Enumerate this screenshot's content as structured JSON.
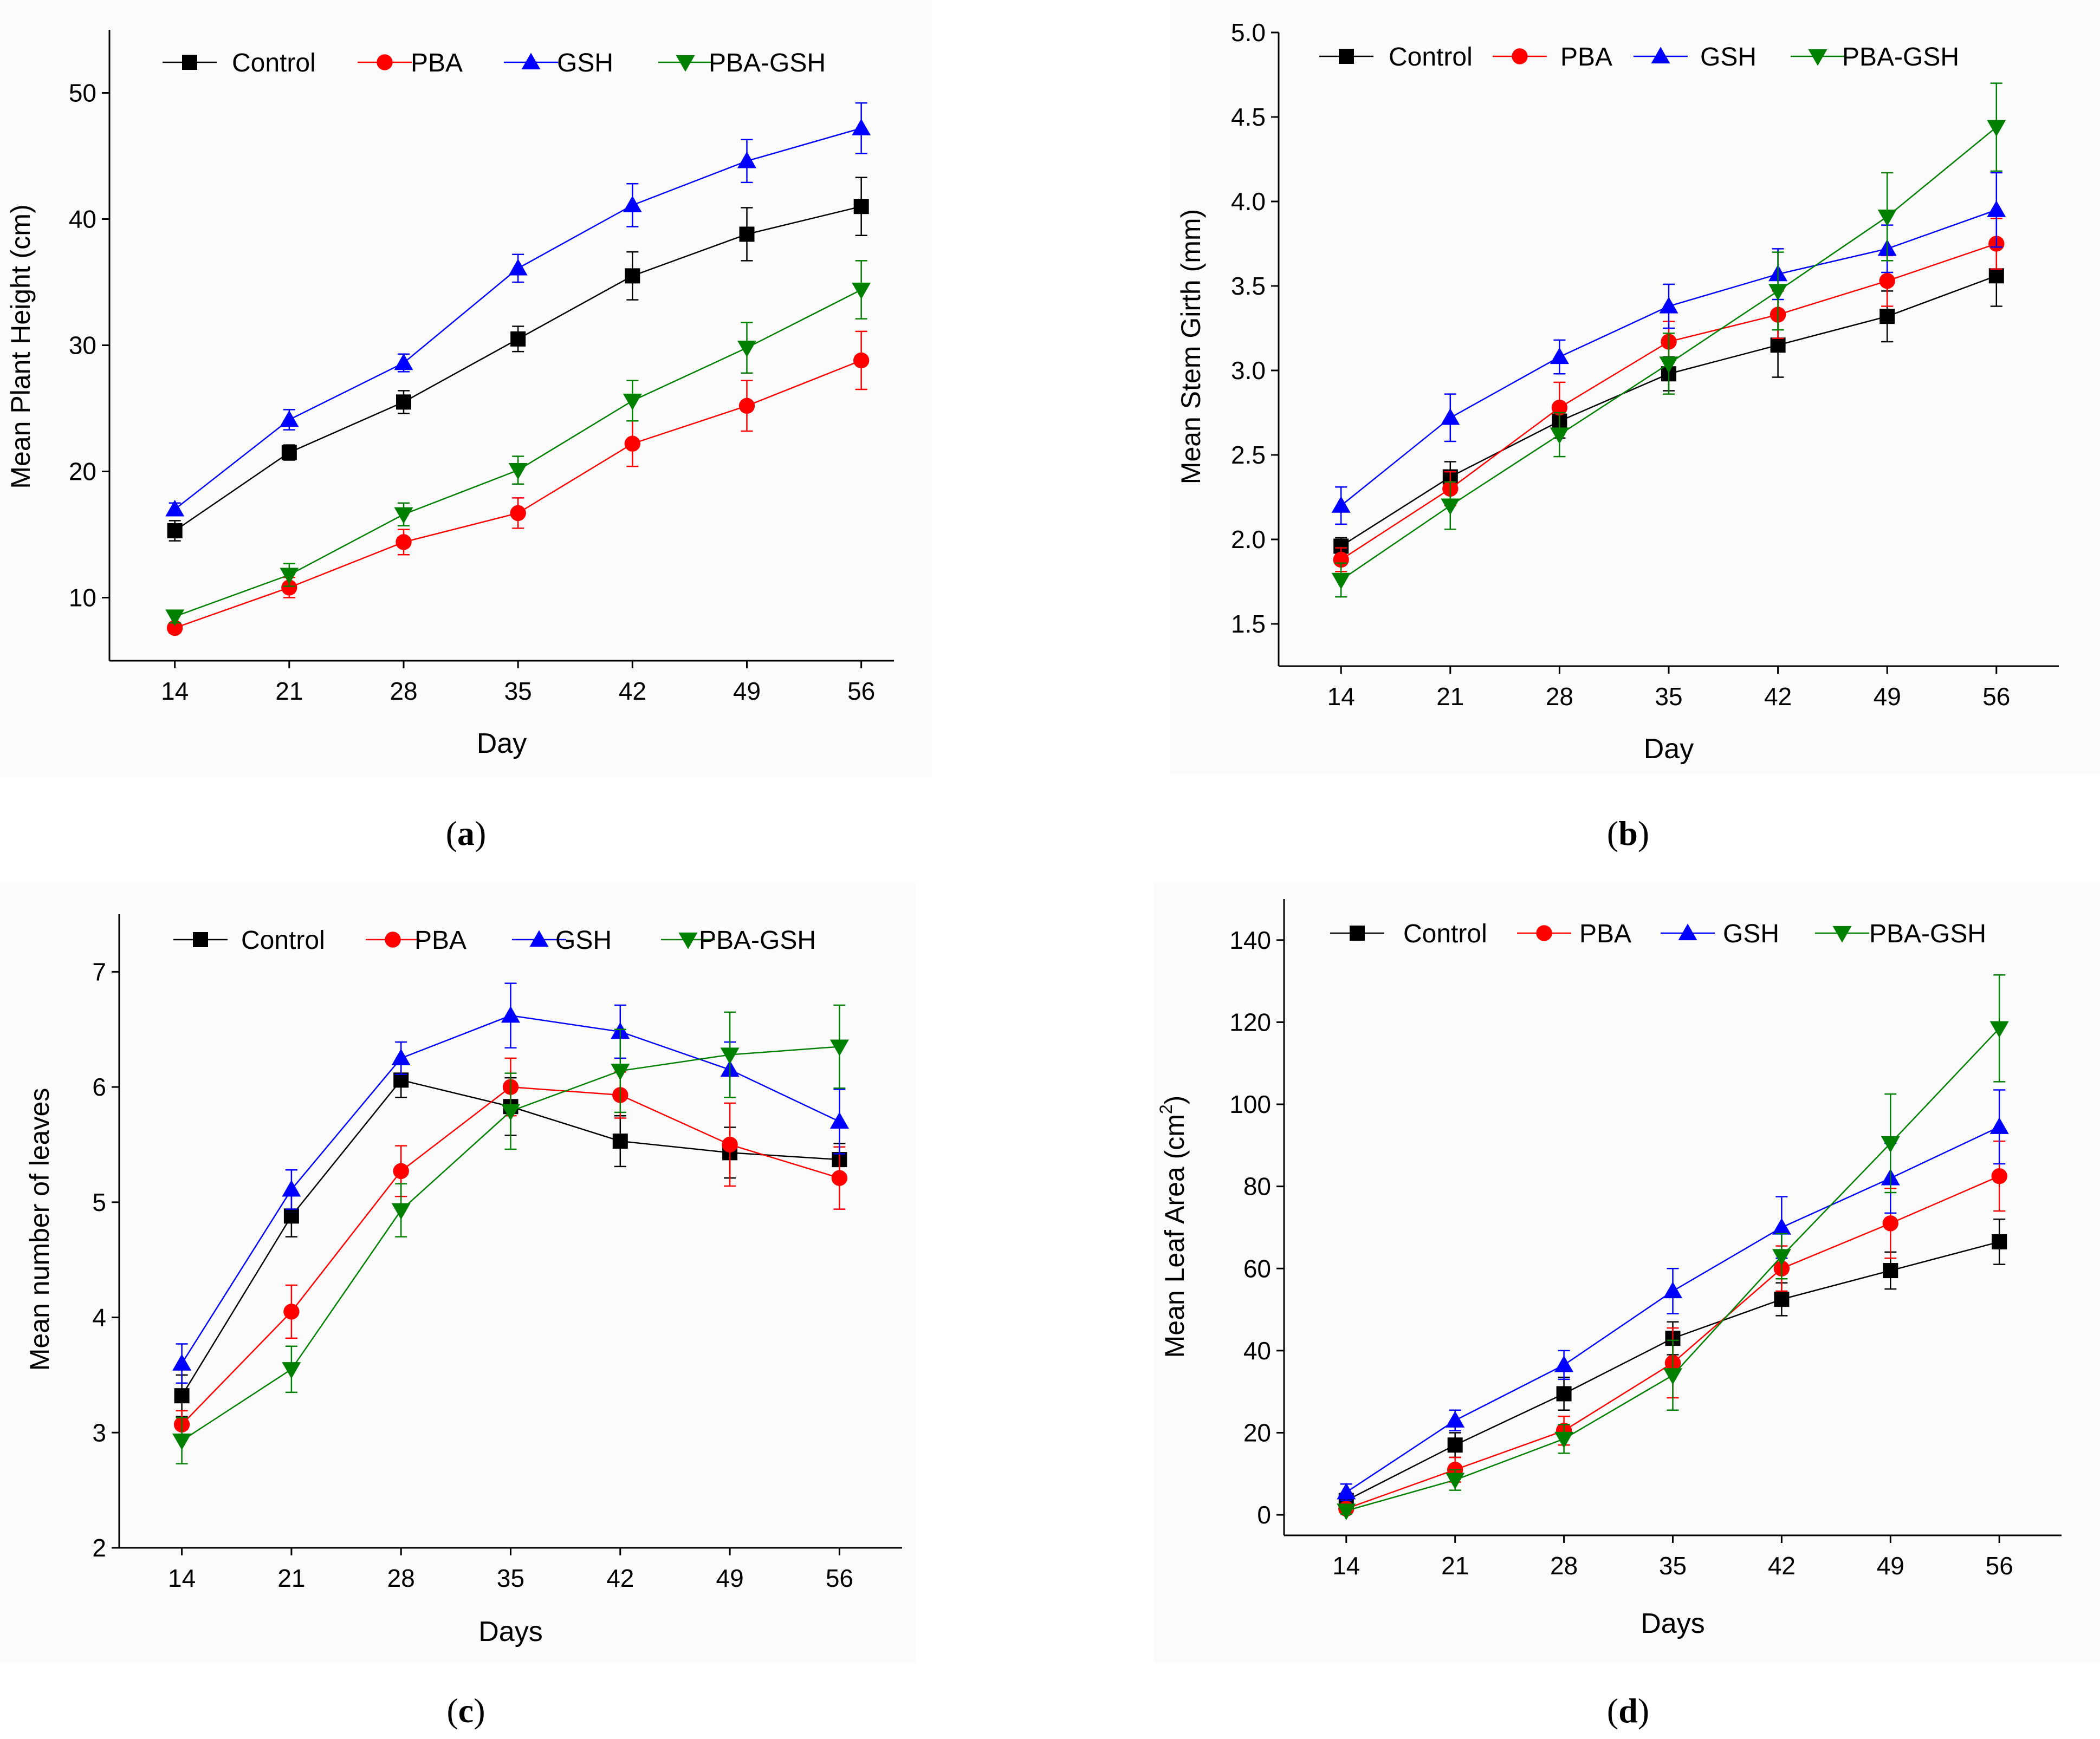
{
  "colors": {
    "Control": "#000000",
    "PBA": "#ff0000",
    "GSH": "#0000ff",
    "PBA-GSH": "#008000"
  },
  "chart_data": [
    {
      "type": "line",
      "panel": "(a)",
      "panel_letter": "a",
      "xlabel": "Day",
      "ylabel": "Mean Plant Height (cm)",
      "ylabel_sup": "",
      "ylabel_suffix": "",
      "x": [
        14,
        21,
        28,
        35,
        42,
        49,
        56
      ],
      "xlim": [
        10,
        58
      ],
      "ylim": [
        5,
        55
      ],
      "yticks": [
        10,
        20,
        30,
        40,
        50
      ],
      "ytick_labels": [
        "10",
        "20",
        "30",
        "40",
        "50"
      ],
      "series": [
        {
          "name": "Control",
          "marker": "square",
          "values": [
            15.3,
            21.5,
            25.5,
            30.5,
            35.5,
            38.8,
            41.0
          ],
          "errors": [
            0.8,
            0.6,
            0.9,
            1.0,
            1.9,
            2.1,
            2.3
          ]
        },
        {
          "name": "PBA",
          "marker": "circle",
          "values": [
            7.6,
            10.8,
            14.4,
            16.7,
            22.2,
            25.2,
            28.8
          ],
          "errors": [
            0.4,
            0.8,
            1.0,
            1.2,
            1.8,
            2.0,
            2.3
          ]
        },
        {
          "name": "GSH",
          "marker": "triangle-up",
          "values": [
            17.0,
            24.1,
            28.6,
            36.1,
            41.1,
            44.6,
            47.2
          ],
          "errors": [
            0.5,
            0.8,
            0.7,
            1.1,
            1.7,
            1.7,
            2.0
          ]
        },
        {
          "name": "PBA-GSH",
          "marker": "triangle-down",
          "values": [
            8.5,
            11.8,
            16.6,
            20.1,
            25.6,
            29.8,
            34.4
          ],
          "errors": [
            0.5,
            0.9,
            0.9,
            1.1,
            1.6,
            2.0,
            2.3
          ]
        }
      ]
    },
    {
      "type": "line",
      "panel": "(b)",
      "panel_letter": "b",
      "xlabel": "Day",
      "ylabel": "Mean Stem Girth (mm)",
      "ylabel_sup": "",
      "ylabel_suffix": "",
      "x": [
        14,
        21,
        28,
        35,
        42,
        49,
        56
      ],
      "xlim": [
        10,
        60
      ],
      "ylim": [
        1.25,
        5.0
      ],
      "yticks": [
        1.5,
        2.0,
        2.5,
        3.0,
        3.5,
        4.0,
        4.5,
        5.0
      ],
      "ytick_labels": [
        "1.5",
        "2.0",
        "2.5",
        "3.0",
        "3.5",
        "4.0",
        "4.5",
        "5.0"
      ],
      "series": [
        {
          "name": "Control",
          "marker": "square",
          "values": [
            1.96,
            2.37,
            2.7,
            2.98,
            3.15,
            3.32,
            3.56
          ],
          "errors": [
            0.05,
            0.09,
            0.1,
            0.1,
            0.19,
            0.15,
            0.18
          ]
        },
        {
          "name": "PBA",
          "marker": "circle",
          "values": [
            1.88,
            2.3,
            2.78,
            3.17,
            3.33,
            3.53,
            3.75
          ],
          "errors": [
            0.07,
            0.1,
            0.15,
            0.12,
            0.14,
            0.15,
            0.15
          ]
        },
        {
          "name": "GSH",
          "marker": "triangle-up",
          "values": [
            2.2,
            2.72,
            3.08,
            3.38,
            3.57,
            3.72,
            3.95
          ],
          "errors": [
            0.11,
            0.14,
            0.1,
            0.13,
            0.15,
            0.14,
            0.22
          ]
        },
        {
          "name": "PBA-GSH",
          "marker": "triangle-down",
          "values": [
            1.76,
            2.2,
            2.62,
            3.04,
            3.47,
            3.91,
            4.44
          ],
          "errors": [
            0.1,
            0.14,
            0.13,
            0.18,
            0.23,
            0.26,
            0.26
          ]
        }
      ]
    },
    {
      "type": "line",
      "panel": "(c)",
      "panel_letter": "c",
      "xlabel": "Days",
      "ylabel": "Mean number of leaves",
      "ylabel_sup": "",
      "ylabel_suffix": "",
      "x": [
        14,
        21,
        28,
        35,
        42,
        49,
        56
      ],
      "xlim": [
        10,
        60
      ],
      "ylim": [
        2,
        7.5
      ],
      "yticks": [
        2,
        3,
        4,
        5,
        6,
        7
      ],
      "ytick_labels": [
        "2",
        "3",
        "4",
        "5",
        "6",
        "7"
      ],
      "series": [
        {
          "name": "Control",
          "marker": "square",
          "values": [
            3.32,
            4.88,
            6.06,
            5.83,
            5.53,
            5.43,
            5.37
          ],
          "errors": [
            0.18,
            0.18,
            0.15,
            0.25,
            0.22,
            0.22,
            0.14
          ]
        },
        {
          "name": "PBA",
          "marker": "circle",
          "values": [
            3.07,
            4.05,
            5.27,
            6.0,
            5.93,
            5.5,
            5.21
          ],
          "errors": [
            0.12,
            0.23,
            0.22,
            0.25,
            0.2,
            0.36,
            0.27
          ]
        },
        {
          "name": "GSH",
          "marker": "triangle-up",
          "values": [
            3.6,
            5.11,
            6.25,
            6.62,
            6.48,
            6.15,
            5.7
          ],
          "errors": [
            0.17,
            0.17,
            0.14,
            0.28,
            0.23,
            0.24,
            0.28
          ]
        },
        {
          "name": "PBA-GSH",
          "marker": "triangle-down",
          "values": [
            2.93,
            3.55,
            4.93,
            5.79,
            6.14,
            6.28,
            6.35
          ],
          "errors": [
            0.2,
            0.2,
            0.23,
            0.33,
            0.36,
            0.37,
            0.36
          ]
        }
      ]
    },
    {
      "type": "line",
      "panel": "(d)",
      "panel_letter": "d",
      "xlabel": "Days",
      "ylabel": "Mean Leaf Area (cm",
      "ylabel_sup": "2",
      "ylabel_suffix": ")",
      "x": [
        14,
        21,
        28,
        35,
        42,
        49,
        56
      ],
      "xlim": [
        10,
        60
      ],
      "ylim": [
        -5,
        150
      ],
      "yticks": [
        0,
        20,
        40,
        60,
        80,
        100,
        120,
        140
      ],
      "ytick_labels": [
        "0",
        "20",
        "40",
        "60",
        "80",
        "100",
        "120",
        "140"
      ],
      "series": [
        {
          "name": "Control",
          "marker": "square",
          "values": [
            3.5,
            17.0,
            29.5,
            43.0,
            52.5,
            59.5,
            66.5
          ],
          "errors": [
            1.5,
            3.0,
            4.0,
            4.0,
            4.0,
            4.5,
            5.5
          ]
        },
        {
          "name": "PBA",
          "marker": "circle",
          "values": [
            1.5,
            11.0,
            20.5,
            37.0,
            60.0,
            71.0,
            82.5
          ],
          "errors": [
            1.0,
            3.0,
            3.5,
            8.5,
            5.5,
            8.5,
            8.5
          ]
        },
        {
          "name": "GSH",
          "marker": "triangle-up",
          "values": [
            5.5,
            23.0,
            36.5,
            54.5,
            70.0,
            82.0,
            94.5
          ],
          "errors": [
            2.0,
            2.5,
            3.5,
            5.5,
            7.5,
            8.5,
            9.0
          ]
        },
        {
          "name": "PBA-GSH",
          "marker": "triangle-down",
          "values": [
            1.0,
            8.5,
            18.5,
            34.0,
            63.0,
            90.5,
            118.5
          ],
          "errors": [
            0.8,
            2.5,
            3.5,
            8.5,
            5.5,
            12.0,
            13.0
          ]
        }
      ]
    }
  ]
}
